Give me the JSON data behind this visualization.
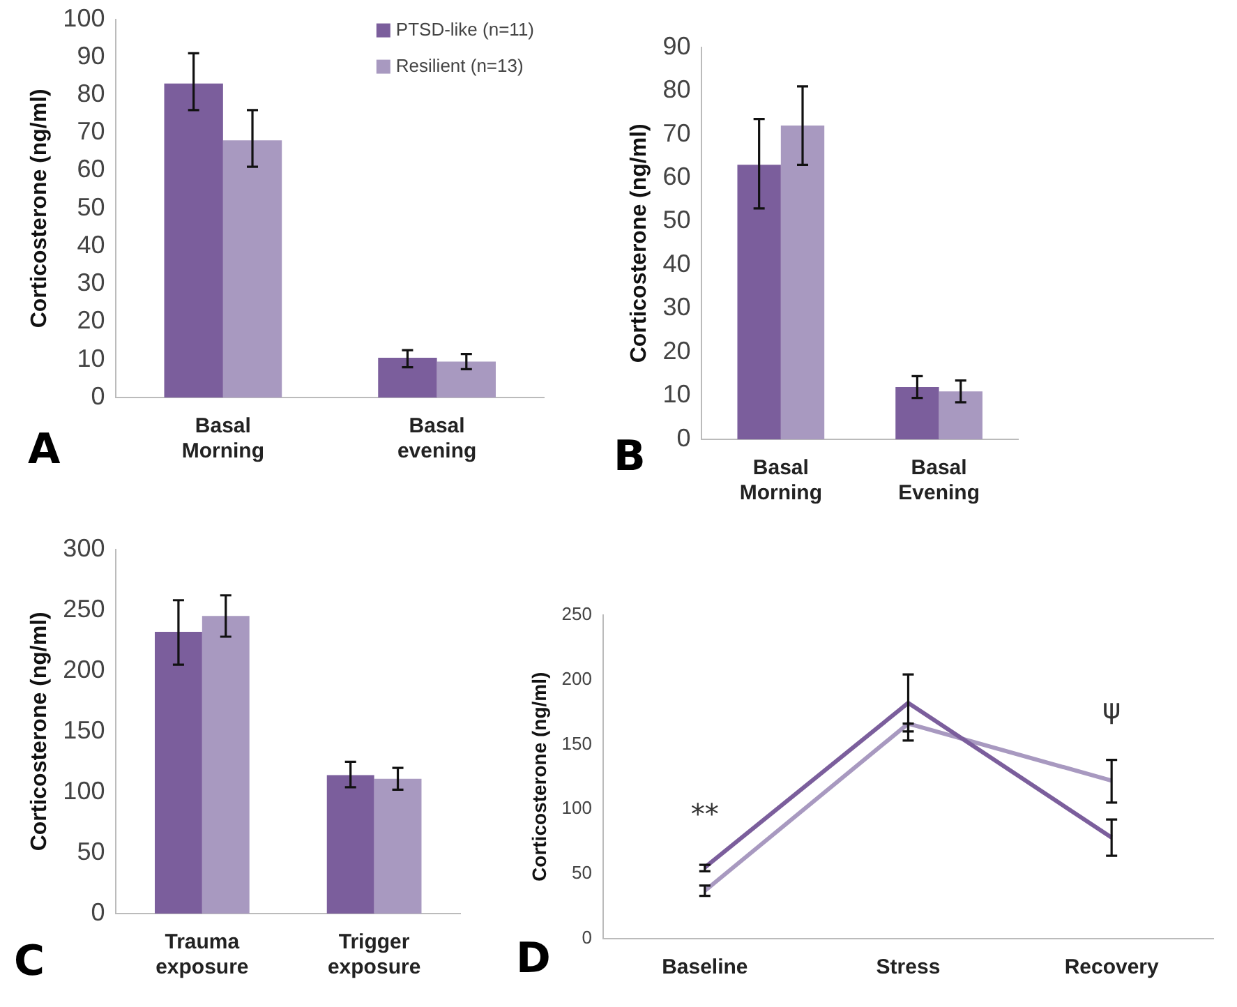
{
  "chart_data": [
    {
      "type": "bar",
      "ylabel": "Corticosterone (ng/ml)",
      "categories": [
        "Basal Morning",
        "Basal evening"
      ],
      "ylim": [
        0,
        100
      ],
      "yticks": [
        0,
        10,
        20,
        30,
        40,
        50,
        60,
        70,
        80,
        90,
        100
      ],
      "grid": false,
      "legend": "top right",
      "annotations": [
        "A"
      ],
      "series": [
        {
          "name": "PTSD-like (n=11)",
          "color": "#7b5e9c",
          "values": [
            83,
            10.5
          ],
          "errors": [
            [
              76,
              91
            ],
            [
              8,
              12.5
            ]
          ]
        },
        {
          "name": "Resilient (n=13)",
          "color": "#a899c0",
          "values": [
            68,
            9.5
          ],
          "errors": [
            [
              61,
              76
            ],
            [
              7.5,
              11.5
            ]
          ]
        }
      ]
    },
    {
      "type": "bar",
      "ylabel": "Corticosterone (ng/ml)",
      "categories": [
        "Basal Morning",
        "Basal Evening"
      ],
      "ylim": [
        0,
        90
      ],
      "yticks": [
        0,
        10,
        20,
        30,
        40,
        50,
        60,
        70,
        80,
        90
      ],
      "grid": false,
      "annotations": [
        "B"
      ],
      "series": [
        {
          "color": "#7b5e9c",
          "values": [
            63,
            12
          ],
          "errors": [
            [
              53,
              73.5
            ],
            [
              9.5,
              14.5
            ]
          ]
        },
        {
          "color": "#a899c0",
          "values": [
            72,
            11
          ],
          "errors": [
            [
              63,
              81
            ],
            [
              8.5,
              13.5
            ]
          ]
        }
      ]
    },
    {
      "type": "bar",
      "ylabel": "Corticosterone (ng/ml)",
      "categories": [
        "Trauma exposure",
        "Trigger exposure"
      ],
      "ylim": [
        0,
        300
      ],
      "yticks": [
        0,
        50,
        100,
        150,
        200,
        250,
        300
      ],
      "grid": false,
      "annotations": [
        "C"
      ],
      "series": [
        {
          "color": "#7b5e9c",
          "values": [
            232,
            114
          ],
          "errors": [
            [
              205,
              258
            ],
            [
              104,
              125
            ]
          ]
        },
        {
          "color": "#a899c0",
          "values": [
            245,
            111
          ],
          "errors": [
            [
              228,
              262
            ],
            [
              102,
              120
            ]
          ]
        }
      ]
    },
    {
      "type": "line",
      "ylabel": "Corticosterone (ng/ml)",
      "categories": [
        "Baseline",
        "Stress",
        "Recovery"
      ],
      "ylim": [
        0,
        250
      ],
      "yticks": [
        0,
        50,
        100,
        150,
        200,
        250
      ],
      "grid": false,
      "marker": "none",
      "annotations": [
        "D",
        {
          "text": "**",
          "x": "Baseline",
          "y": 55
        },
        {
          "text": "ψ",
          "x": "Recovery",
          "y": 122
        }
      ],
      "series": [
        {
          "color": "#7b5e9c",
          "values": [
            55,
            182,
            78
          ],
          "errors": [
            [
              52,
              57
            ],
            [
              160,
              204
            ],
            [
              64,
              92
            ]
          ]
        },
        {
          "color": "#a899c0",
          "values": [
            37,
            166,
            122
          ],
          "errors": [
            [
              33,
              41
            ],
            [
              153,
              166
            ],
            [
              105,
              138
            ]
          ]
        }
      ]
    }
  ]
}
